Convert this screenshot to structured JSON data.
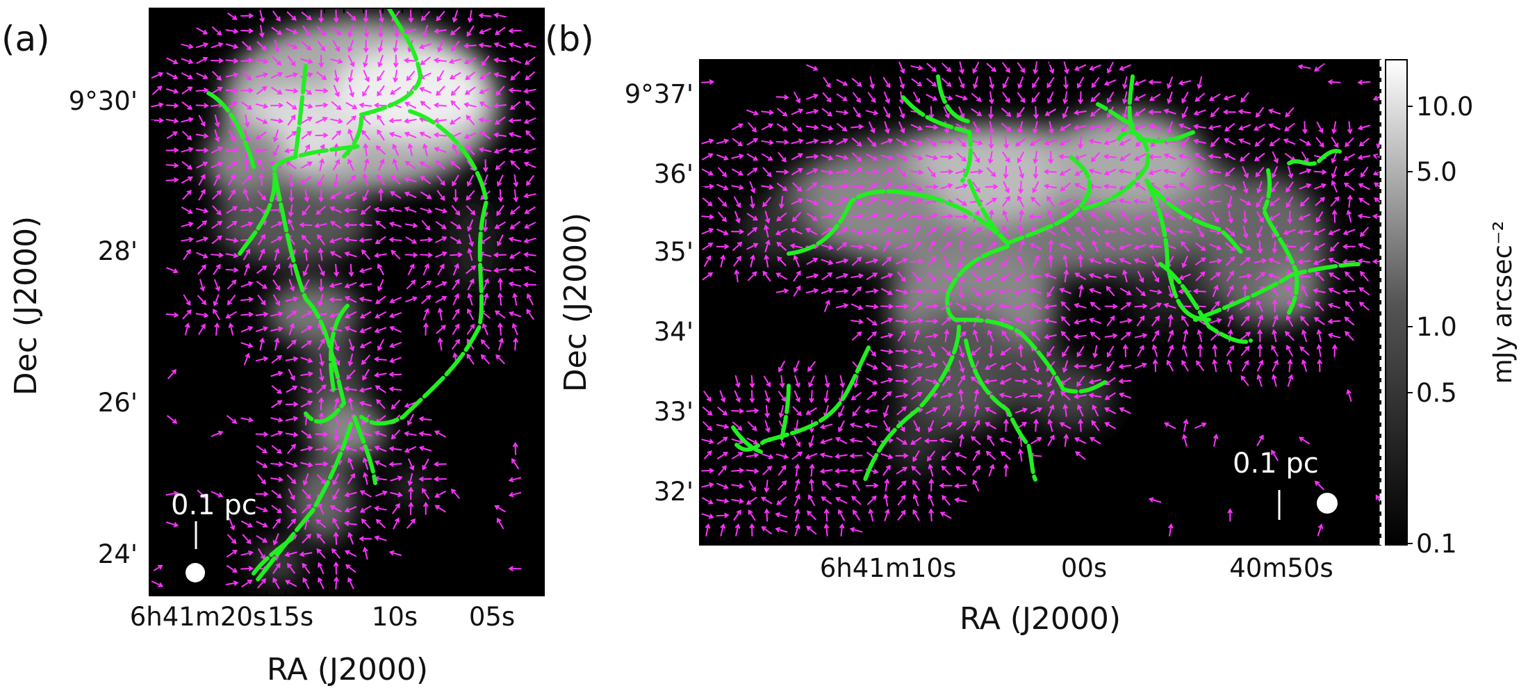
{
  "panels": [
    {
      "id": "a",
      "label": "(a)",
      "xlabel": "RA (J2000)",
      "ylabel": "Dec (J2000)",
      "ra_ticks": [
        "6h41m20s",
        "15s",
        "10s",
        "05s"
      ],
      "dec_ticks": [
        "9°30'",
        "28'",
        "26'",
        "24'"
      ],
      "scale_bar": "0.1 pc"
    },
    {
      "id": "b",
      "label": "(b)",
      "xlabel": "RA (J2000)",
      "ylabel": "Dec (J2000)",
      "ra_ticks": [
        "6h41m10s",
        "00s",
        "40m50s"
      ],
      "dec_ticks": [
        "9°37'",
        "36'",
        "35'",
        "34'",
        "33'",
        "32'"
      ],
      "scale_bar": "0.1 pc"
    }
  ],
  "colorbar": {
    "label": "mJy arcsec⁻²",
    "ticks": [
      "10.0",
      "5.0",
      "1.0",
      "0.5",
      "0.1"
    ],
    "colormap": "grayscale"
  },
  "colors": {
    "filament": "#22ee22",
    "vector": "#ff33ff",
    "background": "#000000",
    "scale": "#ffffff"
  },
  "icons": {
    "beam": "white-circle",
    "vectors": "magenta-arrows",
    "filaments": "green-dashed-curves"
  }
}
